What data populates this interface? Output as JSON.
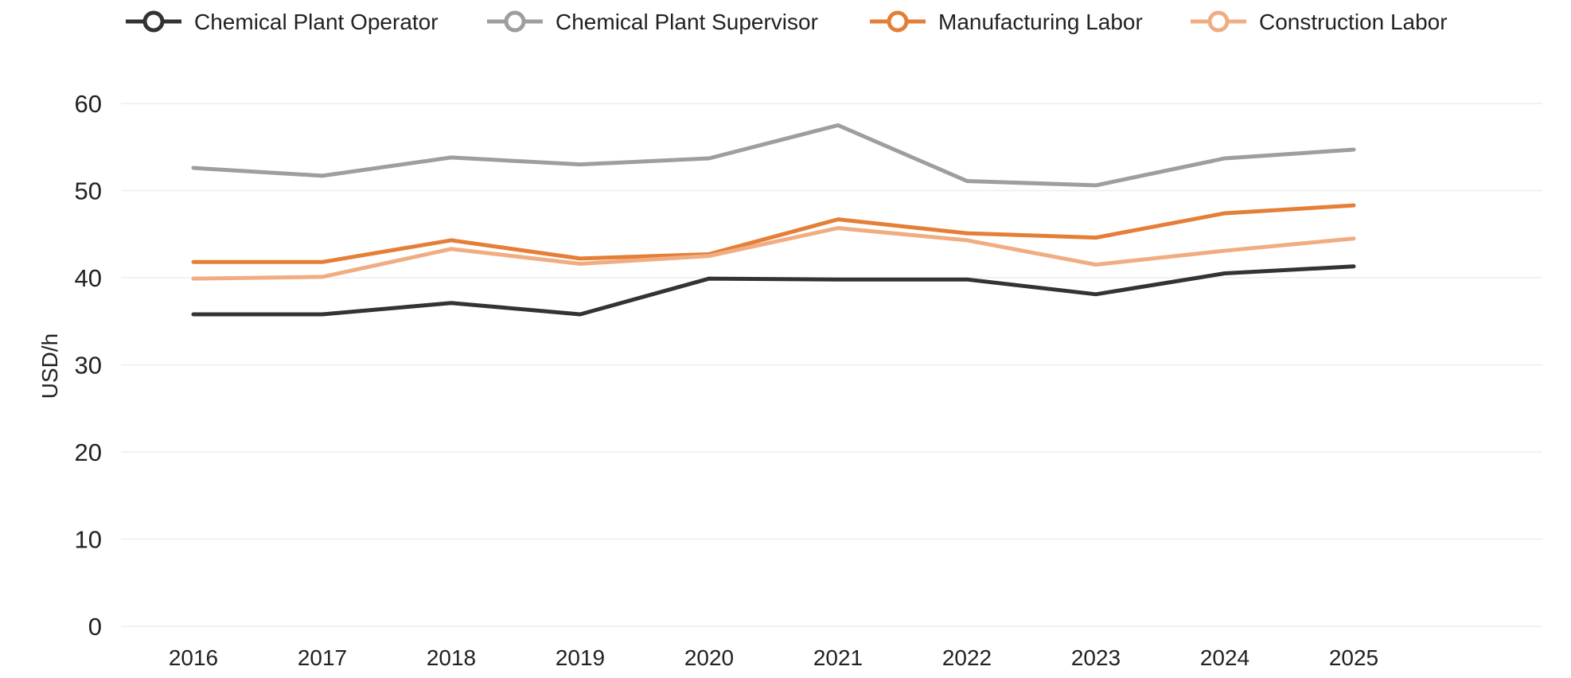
{
  "chart_data": {
    "type": "line",
    "title": "",
    "xlabel": "",
    "ylabel": "USD/h",
    "x": [
      "2016",
      "2017",
      "2018",
      "2019",
      "2020",
      "2021",
      "2022",
      "2023",
      "2024",
      "2025"
    ],
    "ylim": [
      0,
      60
    ],
    "yticks": [
      "0",
      "10",
      "20",
      "30",
      "40",
      "50",
      "60"
    ],
    "grid": "horizontal",
    "legend_position": "top",
    "series": [
      {
        "name": "Chemical Plant Operator",
        "color": "#333333",
        "values": [
          35.8,
          35.8,
          37.1,
          35.8,
          39.9,
          39.8,
          39.8,
          38.1,
          40.5,
          41.3
        ]
      },
      {
        "name": "Chemical Plant Supervisor",
        "color": "#9e9e9e",
        "values": [
          52.6,
          51.7,
          53.8,
          53.0,
          53.7,
          57.5,
          51.1,
          50.6,
          53.7,
          54.7
        ]
      },
      {
        "name": "Manufacturing Labor",
        "color": "#e57e36",
        "values": [
          41.8,
          41.8,
          44.3,
          42.2,
          42.7,
          46.7,
          45.1,
          44.6,
          47.4,
          48.3
        ]
      },
      {
        "name": "Construction Labor",
        "color": "#f0ad82",
        "values": [
          39.9,
          40.1,
          43.3,
          41.6,
          42.5,
          45.7,
          44.3,
          41.5,
          43.1,
          44.5
        ]
      }
    ]
  }
}
